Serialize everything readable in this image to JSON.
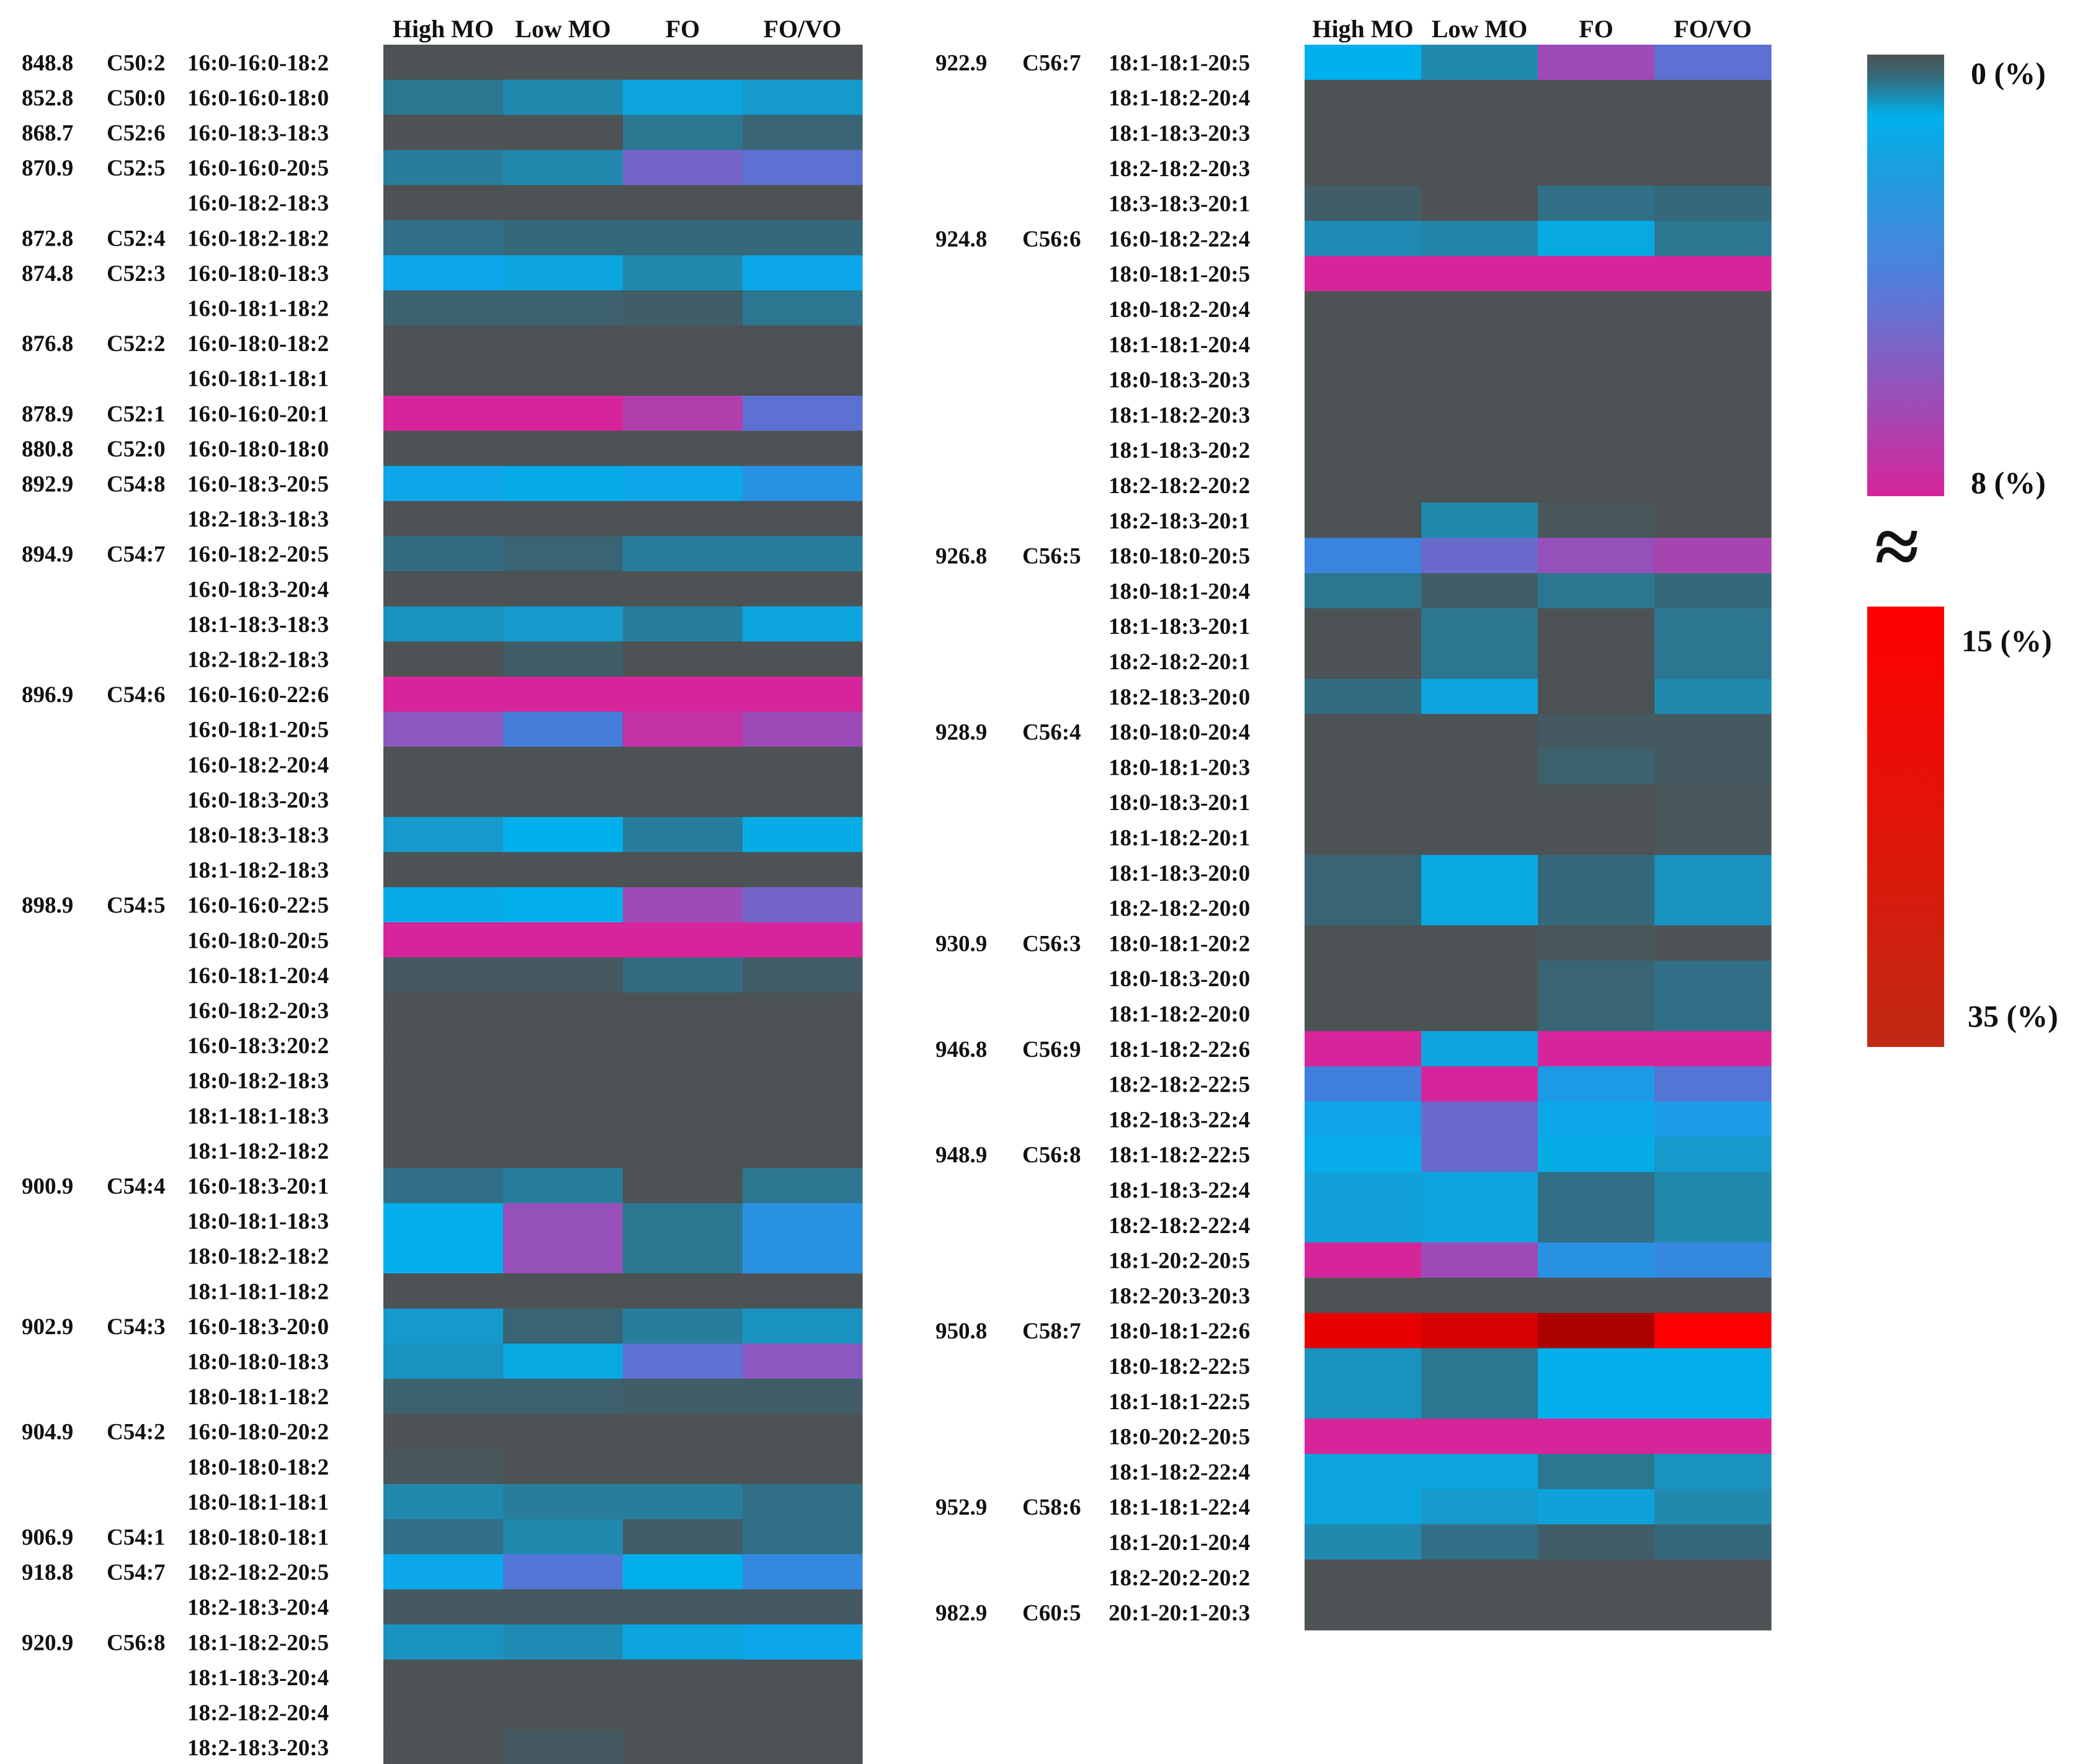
{
  "chart_data": {
    "type": "heatmap",
    "columns": [
      "High MO",
      "Low MO",
      "FO",
      "FO/VO"
    ],
    "colorbar": {
      "low_label": "0 (%)",
      "mid_label": "8 (%)",
      "break_symbol": "≈",
      "high_low_label": "15 (%)",
      "high_label": "35 (%)",
      "low_range": [
        0,
        8
      ],
      "high_range": [
        15,
        35
      ]
    },
    "left_panel": [
      {
        "mass": "848.8",
        "tag": "C50:2",
        "species": "16:0-16:0-18:2",
        "values": [
          0,
          0,
          0,
          0
        ]
      },
      {
        "mass": "852.8",
        "tag": "C50:0",
        "species": "16:0-16:0-18:0",
        "values": [
          1,
          1.5,
          2.5,
          2
        ]
      },
      {
        "mass": "868.7",
        "tag": "C52:6",
        "species": "16:0-18:3-18:3",
        "values": [
          0,
          0,
          1,
          0.5
        ]
      },
      {
        "mass": "870.9",
        "tag": "C52:5",
        "species": "16:0-16:0-20:5",
        "values": [
          1.2,
          1.5,
          5.5,
          5
        ]
      },
      {
        "mass": "",
        "tag": "",
        "species": "16:0-18:2-18:3",
        "values": [
          0,
          0,
          0,
          0
        ]
      },
      {
        "mass": "872.8",
        "tag": "C52:4",
        "species": "16:0-18:2-18:2",
        "values": [
          0.8,
          0.6,
          0.6,
          0.6
        ]
      },
      {
        "mass": "874.8",
        "tag": "C52:3",
        "species": "16:0-18:0-18:3",
        "values": [
          3.5,
          2.5,
          1.5,
          3.5
        ]
      },
      {
        "mass": "",
        "tag": "",
        "species": "16:0-18:1-18:2",
        "values": [
          0.4,
          0.4,
          0.3,
          1
        ]
      },
      {
        "mass": "876.8",
        "tag": "C52:2",
        "species": "16:0-18:0-18:2",
        "values": [
          0,
          0,
          0,
          0
        ]
      },
      {
        "mass": "",
        "tag": "",
        "species": "16:0-18:1-18:1",
        "values": [
          0,
          0,
          0,
          0
        ]
      },
      {
        "mass": "878.9",
        "tag": "C52:1",
        "species": "16:0-16:0-20:1",
        "values": [
          8,
          8,
          7,
          5
        ]
      },
      {
        "mass": "880.8",
        "tag": "C52:0",
        "species": "16:0-18:0-18:0",
        "values": [
          0,
          0,
          0,
          0
        ]
      },
      {
        "mass": "892.9",
        "tag": "C54:8",
        "species": "16:0-18:3-20:5",
        "values": [
          3.5,
          3,
          3.5,
          4
        ]
      },
      {
        "mass": "",
        "tag": "",
        "species": "18:2-18:3-18:3",
        "values": [
          0,
          0,
          0,
          0
        ]
      },
      {
        "mass": "894.9",
        "tag": "C54:7",
        "species": "16:0-18:2-20:5",
        "values": [
          0.7,
          0.5,
          1.2,
          1.2
        ]
      },
      {
        "mass": "",
        "tag": "",
        "species": "16:0-18:3-20:4",
        "values": [
          0,
          0,
          0,
          0
        ]
      },
      {
        "mass": "",
        "tag": "",
        "species": "18:1-18:3-18:3",
        "values": [
          1.8,
          2,
          1.2,
          2.5
        ]
      },
      {
        "mass": "",
        "tag": "",
        "species": "18:2-18:2-18:3",
        "values": [
          0,
          0.3,
          0,
          0
        ]
      },
      {
        "mass": "896.9",
        "tag": "C54:6",
        "species": "16:0-16:0-22:6",
        "values": [
          8,
          8,
          8,
          8
        ]
      },
      {
        "mass": "",
        "tag": "",
        "species": "16:0-18:1-20:5",
        "values": [
          6,
          4.5,
          7.5,
          6.5
        ]
      },
      {
        "mass": "",
        "tag": "",
        "species": "16:0-18:2-20:4",
        "values": [
          0,
          0,
          0,
          0
        ]
      },
      {
        "mass": "",
        "tag": "",
        "species": "16:0-18:3-20:3",
        "values": [
          0,
          0,
          0,
          0
        ]
      },
      {
        "mass": "",
        "tag": "",
        "species": "18:0-18:3-18:3",
        "values": [
          2,
          3.3,
          1.2,
          3
        ]
      },
      {
        "mass": "",
        "tag": "",
        "species": "18:1-18:2-18:3",
        "values": [
          0,
          0,
          0,
          0
        ]
      },
      {
        "mass": "898.9",
        "tag": "C54:5",
        "species": "16:0-16:0-22:5",
        "values": [
          3,
          3.2,
          6.5,
          5.5
        ]
      },
      {
        "mass": "",
        "tag": "",
        "species": "16:0-18:0-20:5",
        "values": [
          8,
          8,
          8,
          8
        ]
      },
      {
        "mass": "",
        "tag": "",
        "species": "16:0-18:1-20:4",
        "values": [
          0.2,
          0.2,
          0.7,
          0.3
        ]
      },
      {
        "mass": "",
        "tag": "",
        "species": "16:0-18:2-20:3",
        "values": [
          0,
          0,
          0,
          0
        ]
      },
      {
        "mass": "",
        "tag": "",
        "species": "16:0-18:3:20:2",
        "values": [
          0,
          0,
          0,
          0
        ]
      },
      {
        "mass": "",
        "tag": "",
        "species": "18:0-18:2-18:3",
        "values": [
          0,
          0,
          0,
          0
        ]
      },
      {
        "mass": "",
        "tag": "",
        "species": "18:1-18:1-18:3",
        "values": [
          0,
          0,
          0,
          0
        ]
      },
      {
        "mass": "",
        "tag": "",
        "species": "18:1-18:2-18:2",
        "values": [
          0,
          0,
          0,
          0
        ]
      },
      {
        "mass": "900.9",
        "tag": "C54:4",
        "species": "16:0-18:3-20:1",
        "values": [
          0.8,
          1.2,
          0,
          1
        ]
      },
      {
        "mass": "",
        "tag": "",
        "species": "18:0-18:1-18:3",
        "values": [
          3.2,
          6.3,
          1,
          4
        ]
      },
      {
        "mass": "",
        "tag": "",
        "species": "18:0-18:2-18:2",
        "values": [
          3.2,
          6.3,
          1,
          4
        ]
      },
      {
        "mass": "",
        "tag": "",
        "species": "18:1-18:1-18:2",
        "values": [
          0,
          0,
          0,
          0
        ]
      },
      {
        "mass": "902.9",
        "tag": "C54:3",
        "species": "16:0-18:3-20:0",
        "values": [
          2,
          0.5,
          1.2,
          1.8
        ]
      },
      {
        "mass": "",
        "tag": "",
        "species": "18:0-18:0-18:3",
        "values": [
          1.8,
          2.8,
          5,
          6
        ]
      },
      {
        "mass": "",
        "tag": "",
        "species": "18:0-18:1-18:2",
        "values": [
          0.4,
          0.4,
          0.3,
          0.3
        ]
      },
      {
        "mass": "904.9",
        "tag": "C54:2",
        "species": "16:0-18:0-20:2",
        "values": [
          0,
          0,
          0,
          0
        ]
      },
      {
        "mass": "",
        "tag": "",
        "species": "18:0-18:0-18:2",
        "values": [
          0.1,
          0,
          0,
          0
        ]
      },
      {
        "mass": "",
        "tag": "",
        "species": "18:0-18:1-18:1",
        "values": [
          1.5,
          1.2,
          1.2,
          0.8
        ]
      },
      {
        "mass": "906.9",
        "tag": "C54:1",
        "species": "18:0-18:0-18:1",
        "values": [
          0.8,
          1.5,
          0.3,
          0.8
        ]
      },
      {
        "mass": "918.8",
        "tag": "C54:7",
        "species": "18:2-18:2-20:5",
        "values": [
          3.5,
          4.8,
          3.3,
          4.2
        ]
      },
      {
        "mass": "",
        "tag": "",
        "species": "18:2-18:3-20:4",
        "values": [
          0.2,
          0.2,
          0.2,
          0.2
        ]
      },
      {
        "mass": "920.9",
        "tag": "C56:8",
        "species": "18:1-18:2-20:5",
        "values": [
          1.8,
          1.6,
          2.5,
          3.5
        ]
      },
      {
        "mass": "",
        "tag": "",
        "species": "18:1-18:3-20:4",
        "values": [
          0,
          0,
          0,
          0
        ]
      },
      {
        "mass": "",
        "tag": "",
        "species": "18:2-18:2-20:4",
        "values": [
          0,
          0,
          0,
          0
        ]
      },
      {
        "mass": "",
        "tag": "",
        "species": "18:2-18:3-20:3",
        "values": [
          0,
          0.2,
          0,
          0
        ]
      }
    ],
    "right_panel": [
      {
        "mass": "922.9",
        "tag": "C56:7",
        "species": "18:1-18:1-20:5",
        "values": [
          3.3,
          1.5,
          6.5,
          5
        ]
      },
      {
        "mass": "",
        "tag": "",
        "species": "18:1-18:2-20:4",
        "values": [
          0,
          0,
          0,
          0
        ]
      },
      {
        "mass": "",
        "tag": "",
        "species": "18:1-18:3-20:3",
        "values": [
          0,
          0,
          0,
          0
        ]
      },
      {
        "mass": "",
        "tag": "",
        "species": "18:2-18:2-20:3",
        "values": [
          0,
          0,
          0,
          0
        ]
      },
      {
        "mass": "",
        "tag": "",
        "species": "18:3-18:3-20:1",
        "values": [
          0.3,
          0,
          0.8,
          0.6
        ]
      },
      {
        "mass": "924.8",
        "tag": "C56:6",
        "species": "16:0-18:2-22:4",
        "values": [
          1.6,
          1.4,
          2.8,
          1
        ]
      },
      {
        "mass": "",
        "tag": "",
        "species": "18:0-18:1-20:5",
        "values": [
          8,
          8,
          8,
          8
        ]
      },
      {
        "mass": "",
        "tag": "",
        "species": "18:0-18:2-20:4",
        "values": [
          0,
          0,
          0,
          0
        ]
      },
      {
        "mass": "",
        "tag": "",
        "species": "18:1-18:1-20:4",
        "values": [
          0,
          0,
          0,
          0
        ]
      },
      {
        "mass": "",
        "tag": "",
        "species": "18:0-18:3-20:3",
        "values": [
          0,
          0,
          0,
          0
        ]
      },
      {
        "mass": "",
        "tag": "",
        "species": "18:1-18:2-20:3",
        "values": [
          0,
          0,
          0,
          0
        ]
      },
      {
        "mass": "",
        "tag": "",
        "species": "18:1-18:3-20:2",
        "values": [
          0,
          0,
          0,
          0
        ]
      },
      {
        "mass": "",
        "tag": "",
        "species": "18:2-18:2-20:2",
        "values": [
          0,
          0,
          0,
          0
        ]
      },
      {
        "mass": "",
        "tag": "",
        "species": "18:2-18:3-20:1",
        "values": [
          0,
          1.5,
          0.1,
          0
        ]
      },
      {
        "mass": "926.8",
        "tag": "C56:5",
        "species": "18:0-18:0-20:5",
        "values": [
          4.3,
          5.3,
          6.3,
          6.8
        ]
      },
      {
        "mass": "",
        "tag": "",
        "species": "18:0-18:1-20:4",
        "values": [
          1,
          0.3,
          1,
          0.6
        ]
      },
      {
        "mass": "",
        "tag": "",
        "species": "18:1-18:3-20:1",
        "values": [
          0,
          1,
          0,
          1
        ]
      },
      {
        "mass": "",
        "tag": "",
        "species": "18:2-18:2-20:1",
        "values": [
          0,
          1,
          0,
          1
        ]
      },
      {
        "mass": "",
        "tag": "",
        "species": "18:2-18:3-20:0",
        "values": [
          0.7,
          2.5,
          0,
          1.5
        ]
      },
      {
        "mass": "928.9",
        "tag": "C56:4",
        "species": "18:0-18:0-20:4",
        "values": [
          0,
          0,
          0.2,
          0.2
        ]
      },
      {
        "mass": "",
        "tag": "",
        "species": "18:0-18:1-20:3",
        "values": [
          0,
          0,
          0.4,
          0.2
        ]
      },
      {
        "mass": "",
        "tag": "",
        "species": "18:0-18:3-20:1",
        "values": [
          0,
          0,
          0,
          0.1
        ]
      },
      {
        "mass": "",
        "tag": "",
        "species": "18:1-18:2-20:1",
        "values": [
          0,
          0,
          0,
          0.1
        ]
      },
      {
        "mass": "",
        "tag": "",
        "species": "18:1-18:3-20:0",
        "values": [
          0.5,
          2.8,
          0.6,
          1.8
        ]
      },
      {
        "mass": "",
        "tag": "",
        "species": "18:2-18:2-20:0",
        "values": [
          0.5,
          2.8,
          0.6,
          1.8
        ]
      },
      {
        "mass": "930.9",
        "tag": "C56:3",
        "species": "18:0-18:1-20:2",
        "values": [
          0,
          0,
          0.1,
          0
        ]
      },
      {
        "mass": "",
        "tag": "",
        "species": "18:0-18:3-20:0",
        "values": [
          0,
          0,
          0.5,
          0.8
        ]
      },
      {
        "mass": "",
        "tag": "",
        "species": "18:1-18:2-20:0",
        "values": [
          0,
          0,
          0.5,
          0.8
        ]
      },
      {
        "mass": "946.8",
        "tag": "C56:9",
        "species": "18:1-18:2-22:6",
        "values": [
          8,
          2.5,
          8,
          8
        ]
      },
      {
        "mass": "",
        "tag": "",
        "species": "18:2-18:2-22:5",
        "values": [
          4.4,
          8,
          3.8,
          4.8
        ]
      },
      {
        "mass": "",
        "tag": "",
        "species": "18:2-18:3-22:4",
        "values": [
          3.6,
          5.3,
          3.5,
          3.8
        ]
      },
      {
        "mass": "948.9",
        "tag": "C56:8",
        "species": "18:1-18:2-22:5",
        "values": [
          3.4,
          5.3,
          3,
          2
        ]
      },
      {
        "mass": "",
        "tag": "",
        "species": "18:1-18:3-22:4",
        "values": [
          2.2,
          2.5,
          0.8,
          1.5
        ]
      },
      {
        "mass": "",
        "tag": "",
        "species": "18:2-18:2-22:4",
        "values": [
          2.2,
          2.5,
          0.8,
          1.5
        ]
      },
      {
        "mass": "",
        "tag": "",
        "species": "18:1-20:2-20:5",
        "values": [
          8,
          6.5,
          4,
          4.2
        ]
      },
      {
        "mass": "",
        "tag": "",
        "species": "18:2-20:3-20:3",
        "values": [
          0,
          0,
          0,
          0
        ]
      },
      {
        "mass": "950.8",
        "tag": "C58:7",
        "species": "18:0-18:1-22:6",
        "values": [
          20,
          24,
          35,
          15
        ]
      },
      {
        "mass": "",
        "tag": "",
        "species": "18:0-18:2-22:5",
        "values": [
          1.8,
          1,
          3.2,
          3.2
        ]
      },
      {
        "mass": "",
        "tag": "",
        "species": "18:1-18:1-22:5",
        "values": [
          1.8,
          1,
          3.2,
          3.2
        ]
      },
      {
        "mass": "",
        "tag": "",
        "species": "18:0-20:2-20:5",
        "values": [
          8,
          8,
          8,
          8
        ]
      },
      {
        "mass": "",
        "tag": "",
        "species": "18:1-18:2-22:4",
        "values": [
          2.5,
          2.5,
          1,
          1.8
        ]
      },
      {
        "mass": "952.9",
        "tag": "C58:6",
        "species": "18:1-18:1-22:4",
        "values": [
          2.5,
          2,
          2.3,
          1.5
        ]
      },
      {
        "mass": "",
        "tag": "",
        "species": "18:1-20:1-20:4",
        "values": [
          1.5,
          0.8,
          0.3,
          0.6
        ]
      },
      {
        "mass": "",
        "tag": "",
        "species": "18:2-20:2-20:2",
        "values": [
          0,
          0,
          0,
          0
        ]
      },
      {
        "mass": "982.9",
        "tag": "C60:5",
        "species": "20:1-20:1-20:3",
        "values": [
          0,
          0,
          0,
          0
        ]
      }
    ]
  }
}
